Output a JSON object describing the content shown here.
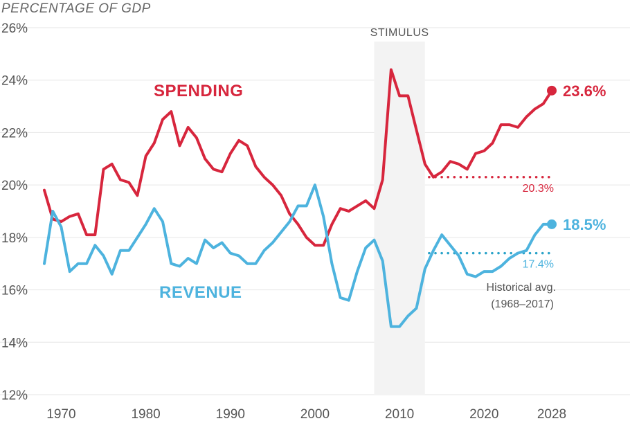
{
  "chart_data": {
    "type": "line",
    "axis_title": "PERCENTAGE OF GDP",
    "y_ticks": [
      "12%",
      "14%",
      "16%",
      "18%",
      "20%",
      "22%",
      "24%",
      "26%"
    ],
    "y_tick_values": [
      12,
      14,
      16,
      18,
      20,
      22,
      24,
      26
    ],
    "x_ticks": [
      "1970",
      "1980",
      "1990",
      "2000",
      "2010",
      "2020",
      "2028"
    ],
    "x_tick_values": [
      1970,
      1980,
      1990,
      2000,
      2010,
      2020,
      2028
    ],
    "xlim": [
      1968,
      2028
    ],
    "ylim": [
      12,
      26
    ],
    "grid": true,
    "shaded_region": {
      "label": "STIMULUS",
      "x_start": 2007,
      "x_end": 2013,
      "color": "#f3f3f3"
    },
    "x": [
      1968,
      1969,
      1970,
      1971,
      1972,
      1973,
      1974,
      1975,
      1976,
      1977,
      1978,
      1979,
      1980,
      1981,
      1982,
      1983,
      1984,
      1985,
      1986,
      1987,
      1988,
      1989,
      1990,
      1991,
      1992,
      1993,
      1994,
      1995,
      1996,
      1997,
      1998,
      1999,
      2000,
      2001,
      2002,
      2003,
      2004,
      2005,
      2006,
      2007,
      2008,
      2009,
      2010,
      2011,
      2012,
      2013,
      2014,
      2015,
      2016,
      2017,
      2018,
      2019,
      2020,
      2021,
      2022,
      2023,
      2024,
      2025,
      2026,
      2027,
      2028
    ],
    "series": [
      {
        "name": "SPENDING",
        "color": "#d7263d",
        "end_label": "23.6%",
        "historical_avg": 20.3,
        "historical_avg_label": "20.3%",
        "values": [
          19.8,
          18.7,
          18.6,
          18.8,
          18.9,
          18.1,
          18.1,
          20.6,
          20.8,
          20.2,
          20.1,
          19.6,
          21.1,
          21.6,
          22.5,
          22.8,
          21.5,
          22.2,
          21.8,
          21.0,
          20.6,
          20.5,
          21.2,
          21.7,
          21.5,
          20.7,
          20.3,
          20.0,
          19.6,
          18.9,
          18.5,
          18.0,
          17.7,
          17.7,
          18.5,
          19.1,
          19.0,
          19.2,
          19.4,
          19.1,
          20.2,
          24.4,
          23.4,
          23.4,
          22.1,
          20.8,
          20.3,
          20.5,
          20.9,
          20.8,
          20.6,
          21.2,
          21.3,
          21.6,
          22.3,
          22.3,
          22.2,
          22.6,
          22.9,
          23.1,
          23.6
        ]
      },
      {
        "name": "REVENUE",
        "color": "#4db3de",
        "end_label": "18.5%",
        "historical_avg": 17.4,
        "historical_avg_label": "17.4%",
        "values": [
          17.0,
          19.0,
          18.4,
          16.7,
          17.0,
          17.0,
          17.7,
          17.3,
          16.6,
          17.5,
          17.5,
          18.0,
          18.5,
          19.1,
          18.6,
          17.0,
          16.9,
          17.2,
          17.0,
          17.9,
          17.6,
          17.8,
          17.4,
          17.3,
          17.0,
          17.0,
          17.5,
          17.8,
          18.2,
          18.6,
          19.2,
          19.2,
          20.0,
          18.8,
          17.0,
          15.7,
          15.6,
          16.7,
          17.6,
          17.9,
          17.1,
          14.6,
          14.6,
          15.0,
          15.3,
          16.8,
          17.5,
          18.1,
          17.7,
          17.3,
          16.6,
          16.5,
          16.7,
          16.7,
          16.9,
          17.2,
          17.4,
          17.5,
          18.1,
          18.5,
          18.5
        ]
      }
    ],
    "note": [
      "Historical avg.",
      "(1968–2017)"
    ],
    "avg_line_start": 2013.5
  }
}
